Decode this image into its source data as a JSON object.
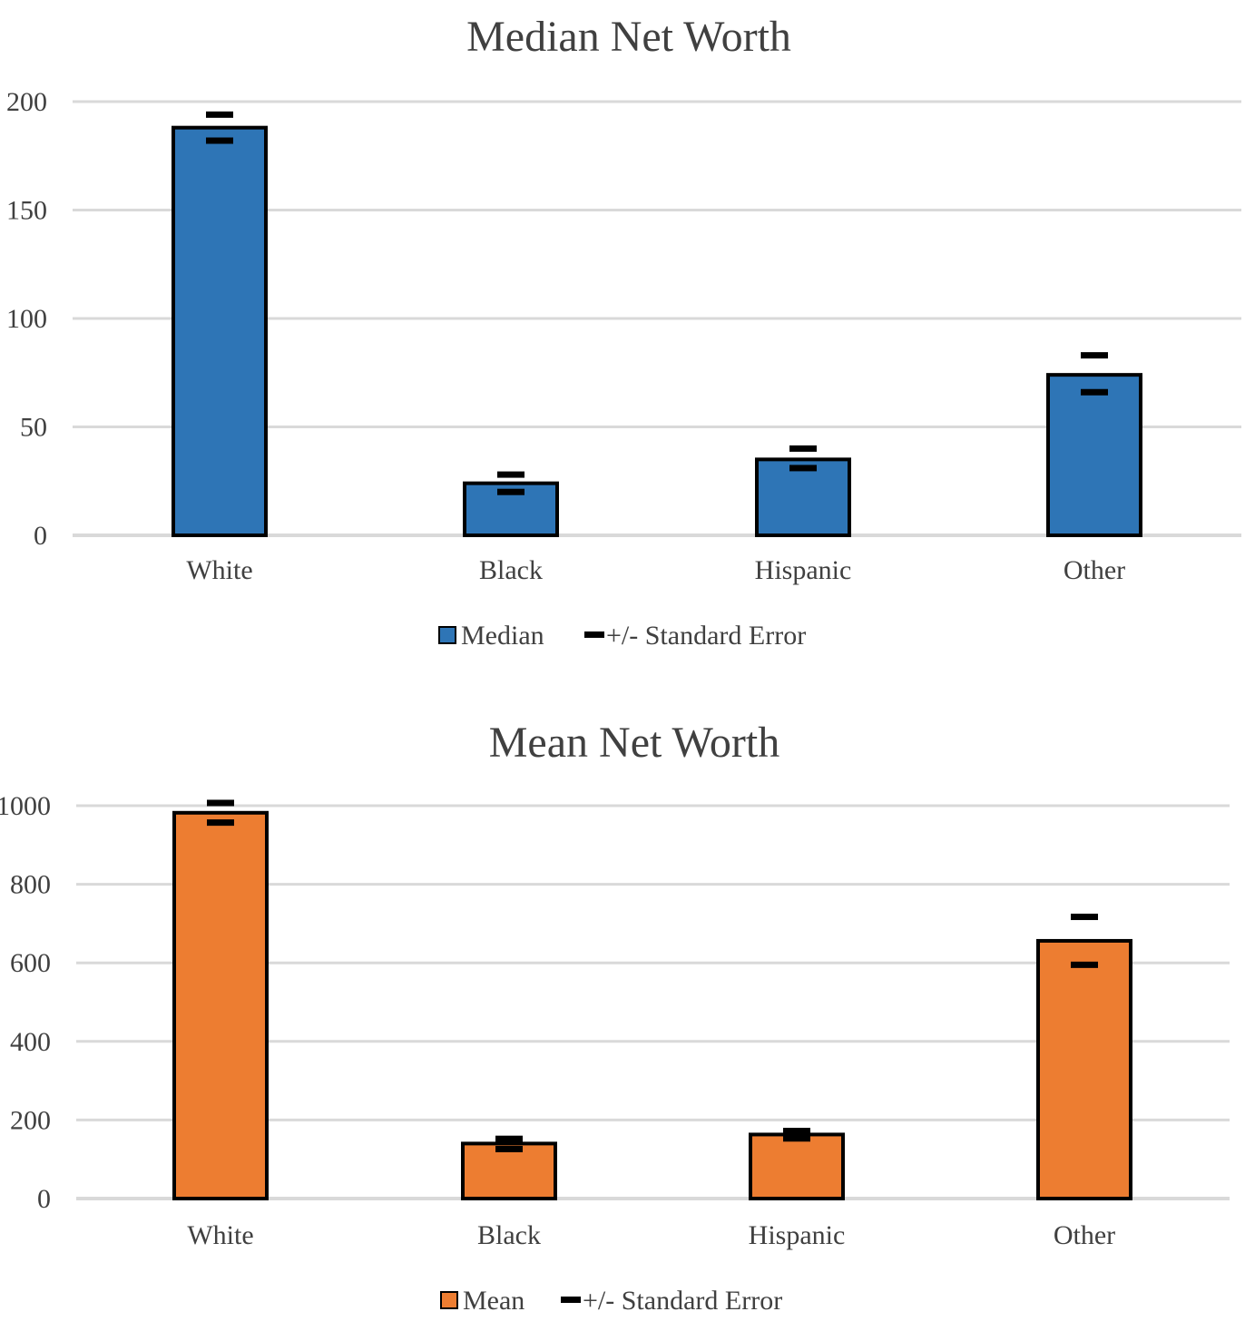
{
  "chart_data": [
    {
      "type": "bar",
      "title": "Median Net Worth",
      "categories": [
        "White",
        "Black",
        "Hispanic",
        "Other"
      ],
      "series": [
        {
          "name": "Median",
          "color": "#2e75b6",
          "values": [
            188,
            24,
            35,
            74
          ]
        }
      ],
      "error_bars": {
        "name": "+/- Standard Error",
        "upper": [
          194,
          28,
          40,
          83
        ],
        "lower": [
          182,
          20,
          31,
          66
        ]
      },
      "yticks": [
        "0",
        "50",
        "100",
        "150",
        "200"
      ],
      "ylim": [
        0,
        200
      ],
      "xlabel": "",
      "ylabel": "",
      "grid": true,
      "legend_position": "bottom",
      "legend": {
        "series_label": "Median",
        "error_label": "+/- Standard Error"
      }
    },
    {
      "type": "bar",
      "title": "Mean Net Worth",
      "categories": [
        "White",
        "Black",
        "Hispanic",
        "Other"
      ],
      "series": [
        {
          "name": "Mean",
          "color": "#ed7d31",
          "values": [
            982,
            140,
            163,
            656
          ]
        }
      ],
      "error_bars": {
        "name": "+/- Standard Error",
        "upper": [
          1007,
          152,
          172,
          717
        ],
        "lower": [
          957,
          126,
          153,
          595
        ]
      },
      "yticks": [
        "0",
        "200",
        "400",
        "600",
        "800",
        "1000"
      ],
      "ylim": [
        0,
        1000
      ],
      "xlabel": "",
      "ylabel": "",
      "grid": true,
      "legend_position": "bottom",
      "legend": {
        "series_label": "Mean",
        "error_label": "+/- Standard Error"
      }
    }
  ]
}
